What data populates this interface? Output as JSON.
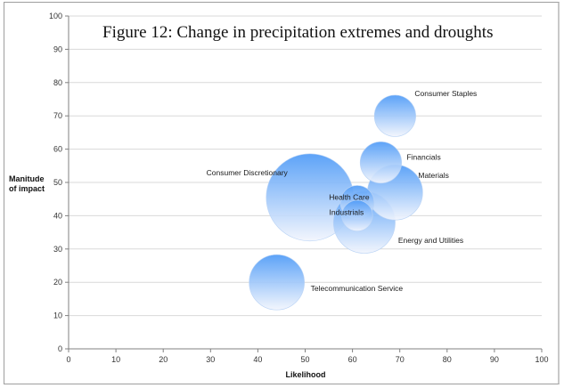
{
  "chart_data": {
    "type": "bubble",
    "title": "Figure 12: Change in precipitation extremes and droughts",
    "xlabel": "Likelihood",
    "ylabel_lines": [
      "Manitude",
      "of impact"
    ],
    "xlim": [
      0,
      100
    ],
    "ylim": [
      0,
      100
    ],
    "x_ticks": [
      0,
      10,
      20,
      30,
      40,
      50,
      60,
      70,
      80,
      90,
      100
    ],
    "y_ticks": [
      0,
      10,
      20,
      30,
      40,
      50,
      60,
      70,
      80,
      90,
      100
    ],
    "grid": "horizontal",
    "legend": "none",
    "colors": {
      "bubble_top": "#4f9bf7",
      "bubble_bottom": "#f2f5fd",
      "grid": "#d9d9d9",
      "axis": "#808080"
    },
    "points": [
      {
        "label": "Consumer Staples",
        "x": 69,
        "y": 70,
        "size": 9
      },
      {
        "label": "Financials",
        "x": 66,
        "y": 56,
        "size": 9
      },
      {
        "label": "Consumer Discretionary",
        "x": 51,
        "y": 45.5,
        "size": 40
      },
      {
        "label": "Materials",
        "x": 69,
        "y": 47,
        "size": 16
      },
      {
        "label": "Health Care",
        "x": 61,
        "y": 44,
        "size": 6
      },
      {
        "label": "Energy and Utilities",
        "x": 62.5,
        "y": 38,
        "size": 20
      },
      {
        "label": "Industrials",
        "x": 61,
        "y": 40,
        "size": 5
      },
      {
        "label": "Telecommunication Service",
        "x": 44,
        "y": 20,
        "size": 16
      }
    ]
  }
}
